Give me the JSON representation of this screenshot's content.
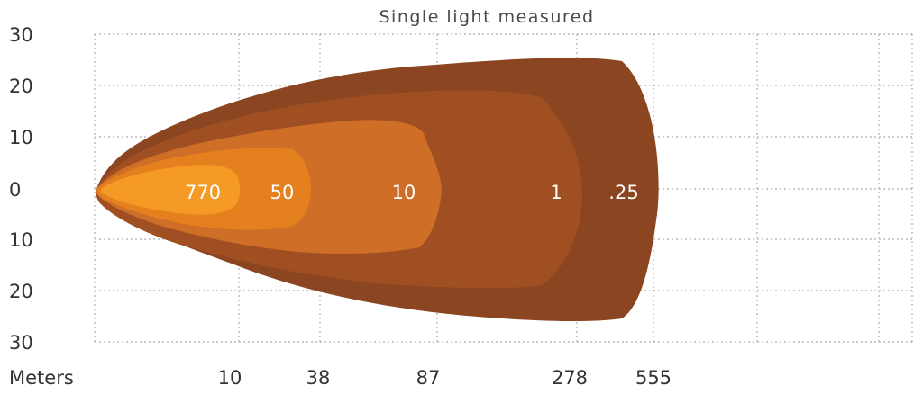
{
  "chart_data": {
    "type": "isolux-beam-plot",
    "title": "Single light measured",
    "x_axis_label": "Meters",
    "x_ticks": [
      "10",
      "38",
      "87",
      "278",
      "555"
    ],
    "y_ticks": [
      "30",
      "20",
      "10",
      "0",
      "10",
      "20",
      "30"
    ],
    "grid": true,
    "isolux_labels": [
      {
        "label": ".25",
        "reach": 555
      },
      {
        "label": "1",
        "reach": 278
      },
      {
        "label": "10",
        "reach": 87
      },
      {
        "label": "50",
        "reach": 38
      },
      {
        "label": "770",
        "reach": 10
      }
    ],
    "colors": {
      "level_0_25": "#8b4520",
      "level_1": "#a04f22",
      "level_10": "#cf6e27",
      "level_50": "#e5801f",
      "level_770": "#f59a25"
    }
  }
}
